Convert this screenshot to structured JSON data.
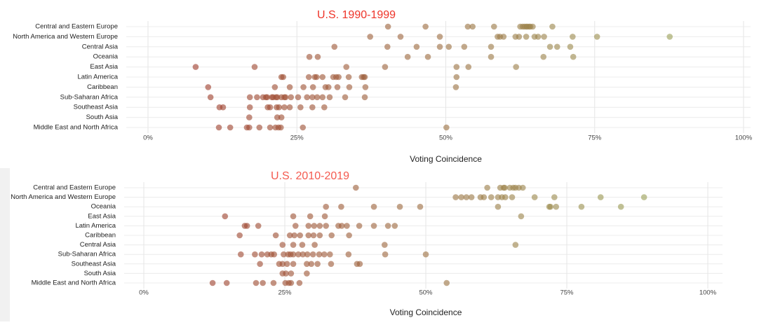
{
  "chart_data": [
    {
      "type": "strip",
      "title": "U.S. 1990-1999",
      "title_color": "#ee3429",
      "x_label": "Voting Coincidence",
      "xlim": [
        0,
        100
      ],
      "xticks": [
        {
          "value": 0,
          "label": "0%"
        },
        {
          "value": 25,
          "label": "25%"
        },
        {
          "value": 50,
          "label": "50%"
        },
        {
          "value": 75,
          "label": "75%"
        },
        {
          "value": 100,
          "label": "100%"
        }
      ],
      "grid": true,
      "color_scale": [
        "#a1352a",
        "#9aae5e"
      ],
      "groups": [
        {
          "category": "Central and Eastern Europe",
          "x": [
            40.3,
            46.6,
            53.7,
            54.5,
            58.1,
            62.5,
            62.9,
            63.2,
            63.5,
            63.7,
            64.0,
            64.2,
            64.6,
            67.9
          ]
        },
        {
          "category": "North America and Western Europe",
          "x": [
            37.3,
            42.4,
            49.0,
            58.7,
            59.1,
            59.7,
            61.7,
            62.3,
            63.5,
            64.9,
            65.5,
            66.5,
            71.3,
            75.4,
            87.6
          ]
        },
        {
          "category": "Central Asia",
          "x": [
            31.3,
            40.2,
            45.1,
            49.0,
            50.5,
            53.1,
            57.6,
            67.5,
            68.7,
            70.9
          ]
        },
        {
          "category": "Oceania",
          "x": [
            27.1,
            28.5,
            43.6,
            47.0,
            57.6,
            66.4,
            71.4
          ]
        },
        {
          "category": "East Asia",
          "x": [
            8.0,
            17.9,
            33.3,
            39.8,
            51.8,
            53.8,
            61.8
          ]
        },
        {
          "category": "Latin America",
          "x": [
            22.4,
            22.7,
            27.0,
            28.0,
            28.3,
            29.3,
            31.1,
            31.6,
            32.0,
            33.7,
            35.9,
            36.4,
            36.2,
            51.8
          ]
        },
        {
          "category": "Caribbean",
          "x": [
            10.1,
            21.3,
            23.8,
            26.1,
            27.7,
            29.8,
            30.3,
            31.8,
            33.8,
            36.5,
            51.7
          ]
        },
        {
          "category": "Sub-Saharan Africa",
          "x": [
            10.5,
            17.1,
            18.3,
            19.3,
            19.8,
            20.0,
            20.8,
            21.0,
            21.5,
            21.7,
            22.4,
            22.9,
            23.1,
            24.0,
            25.2,
            26.7,
            27.6,
            28.4,
            29.3,
            30.5,
            33.1,
            36.4
          ]
        },
        {
          "category": "Southeast Asia",
          "x": [
            12.0,
            12.6,
            17.1,
            20.1,
            20.5,
            21.6,
            22.0,
            22.9,
            23.8,
            25.6,
            27.6,
            29.6
          ]
        },
        {
          "category": "South Asia",
          "x": [
            17.0,
            21.7,
            22.4
          ]
        },
        {
          "category": "Middle East and North Africa",
          "x": [
            11.9,
            13.8,
            16.6,
            17.0,
            18.7,
            20.5,
            21.4,
            21.9,
            22.3,
            26.0,
            50.1
          ]
        }
      ]
    },
    {
      "type": "strip",
      "title": "U.S. 2010-2019",
      "title_color": "#f45a4f",
      "x_label": "Voting Coincidence",
      "xlim": [
        0,
        100
      ],
      "xticks": [
        {
          "value": 0,
          "label": "0%"
        },
        {
          "value": 25,
          "label": "25%"
        },
        {
          "value": 50,
          "label": "50%"
        },
        {
          "value": 75,
          "label": "75%"
        },
        {
          "value": 100,
          "label": "100%"
        }
      ],
      "grid": true,
      "color_scale": [
        "#a1352a",
        "#9aae5e"
      ],
      "groups": [
        {
          "category": "Central and Eastern Europe",
          "x": [
            37.6,
            60.9,
            63.2,
            63.8,
            64.0,
            64.9,
            65.5,
            65.9,
            66.5,
            67.2
          ]
        },
        {
          "category": "North America and Western Europe",
          "x": [
            55.3,
            56.3,
            57.2,
            58.1,
            59.7,
            60.3,
            61.6,
            62.8,
            63.5,
            64.1,
            65.3,
            69.3,
            72.8,
            81.0,
            88.7
          ]
        },
        {
          "category": "Oceania",
          "x": [
            32.3,
            35.0,
            40.8,
            45.4,
            49.0,
            62.8,
            71.9,
            72.1,
            73.1,
            77.6,
            84.6
          ]
        },
        {
          "category": "East Asia",
          "x": [
            14.4,
            26.5,
            29.5,
            32.1,
            66.9
          ]
        },
        {
          "category": "Latin America",
          "x": [
            17.9,
            18.3,
            20.3,
            26.9,
            29.2,
            30.2,
            31.2,
            32.3,
            34.5,
            35.1,
            36.0,
            38.2,
            40.8,
            43.3,
            44.5
          ]
        },
        {
          "category": "Caribbean",
          "x": [
            17.0,
            23.4,
            25.9,
            26.7,
            27.7,
            29.2,
            30.1,
            31.2,
            33.3,
            36.4
          ]
        },
        {
          "category": "Central Asia",
          "x": [
            24.6,
            26.5,
            28.1,
            30.3,
            42.7,
            65.9
          ]
        },
        {
          "category": "Sub-Saharan Africa",
          "x": [
            17.2,
            19.7,
            20.9,
            21.9,
            22.6,
            23.1,
            24.8,
            25.6,
            26.0,
            26.5,
            27.4,
            28.2,
            29.0,
            30.0,
            31.1,
            32.0,
            33.0,
            36.3,
            42.8,
            50.0
          ]
        },
        {
          "category": "Southeast Asia",
          "x": [
            20.6,
            24.0,
            24.6,
            25.4,
            26.5,
            28.9,
            29.7,
            30.8,
            33.2,
            37.8,
            38.3
          ]
        },
        {
          "category": "South Asia",
          "x": [
            24.6,
            25.2,
            26.1,
            28.9
          ]
        },
        {
          "category": "Middle East and North Africa",
          "x": [
            12.2,
            14.7,
            19.9,
            21.1,
            23.0,
            25.1,
            25.7,
            26.1,
            27.6,
            53.7
          ]
        }
      ]
    }
  ]
}
